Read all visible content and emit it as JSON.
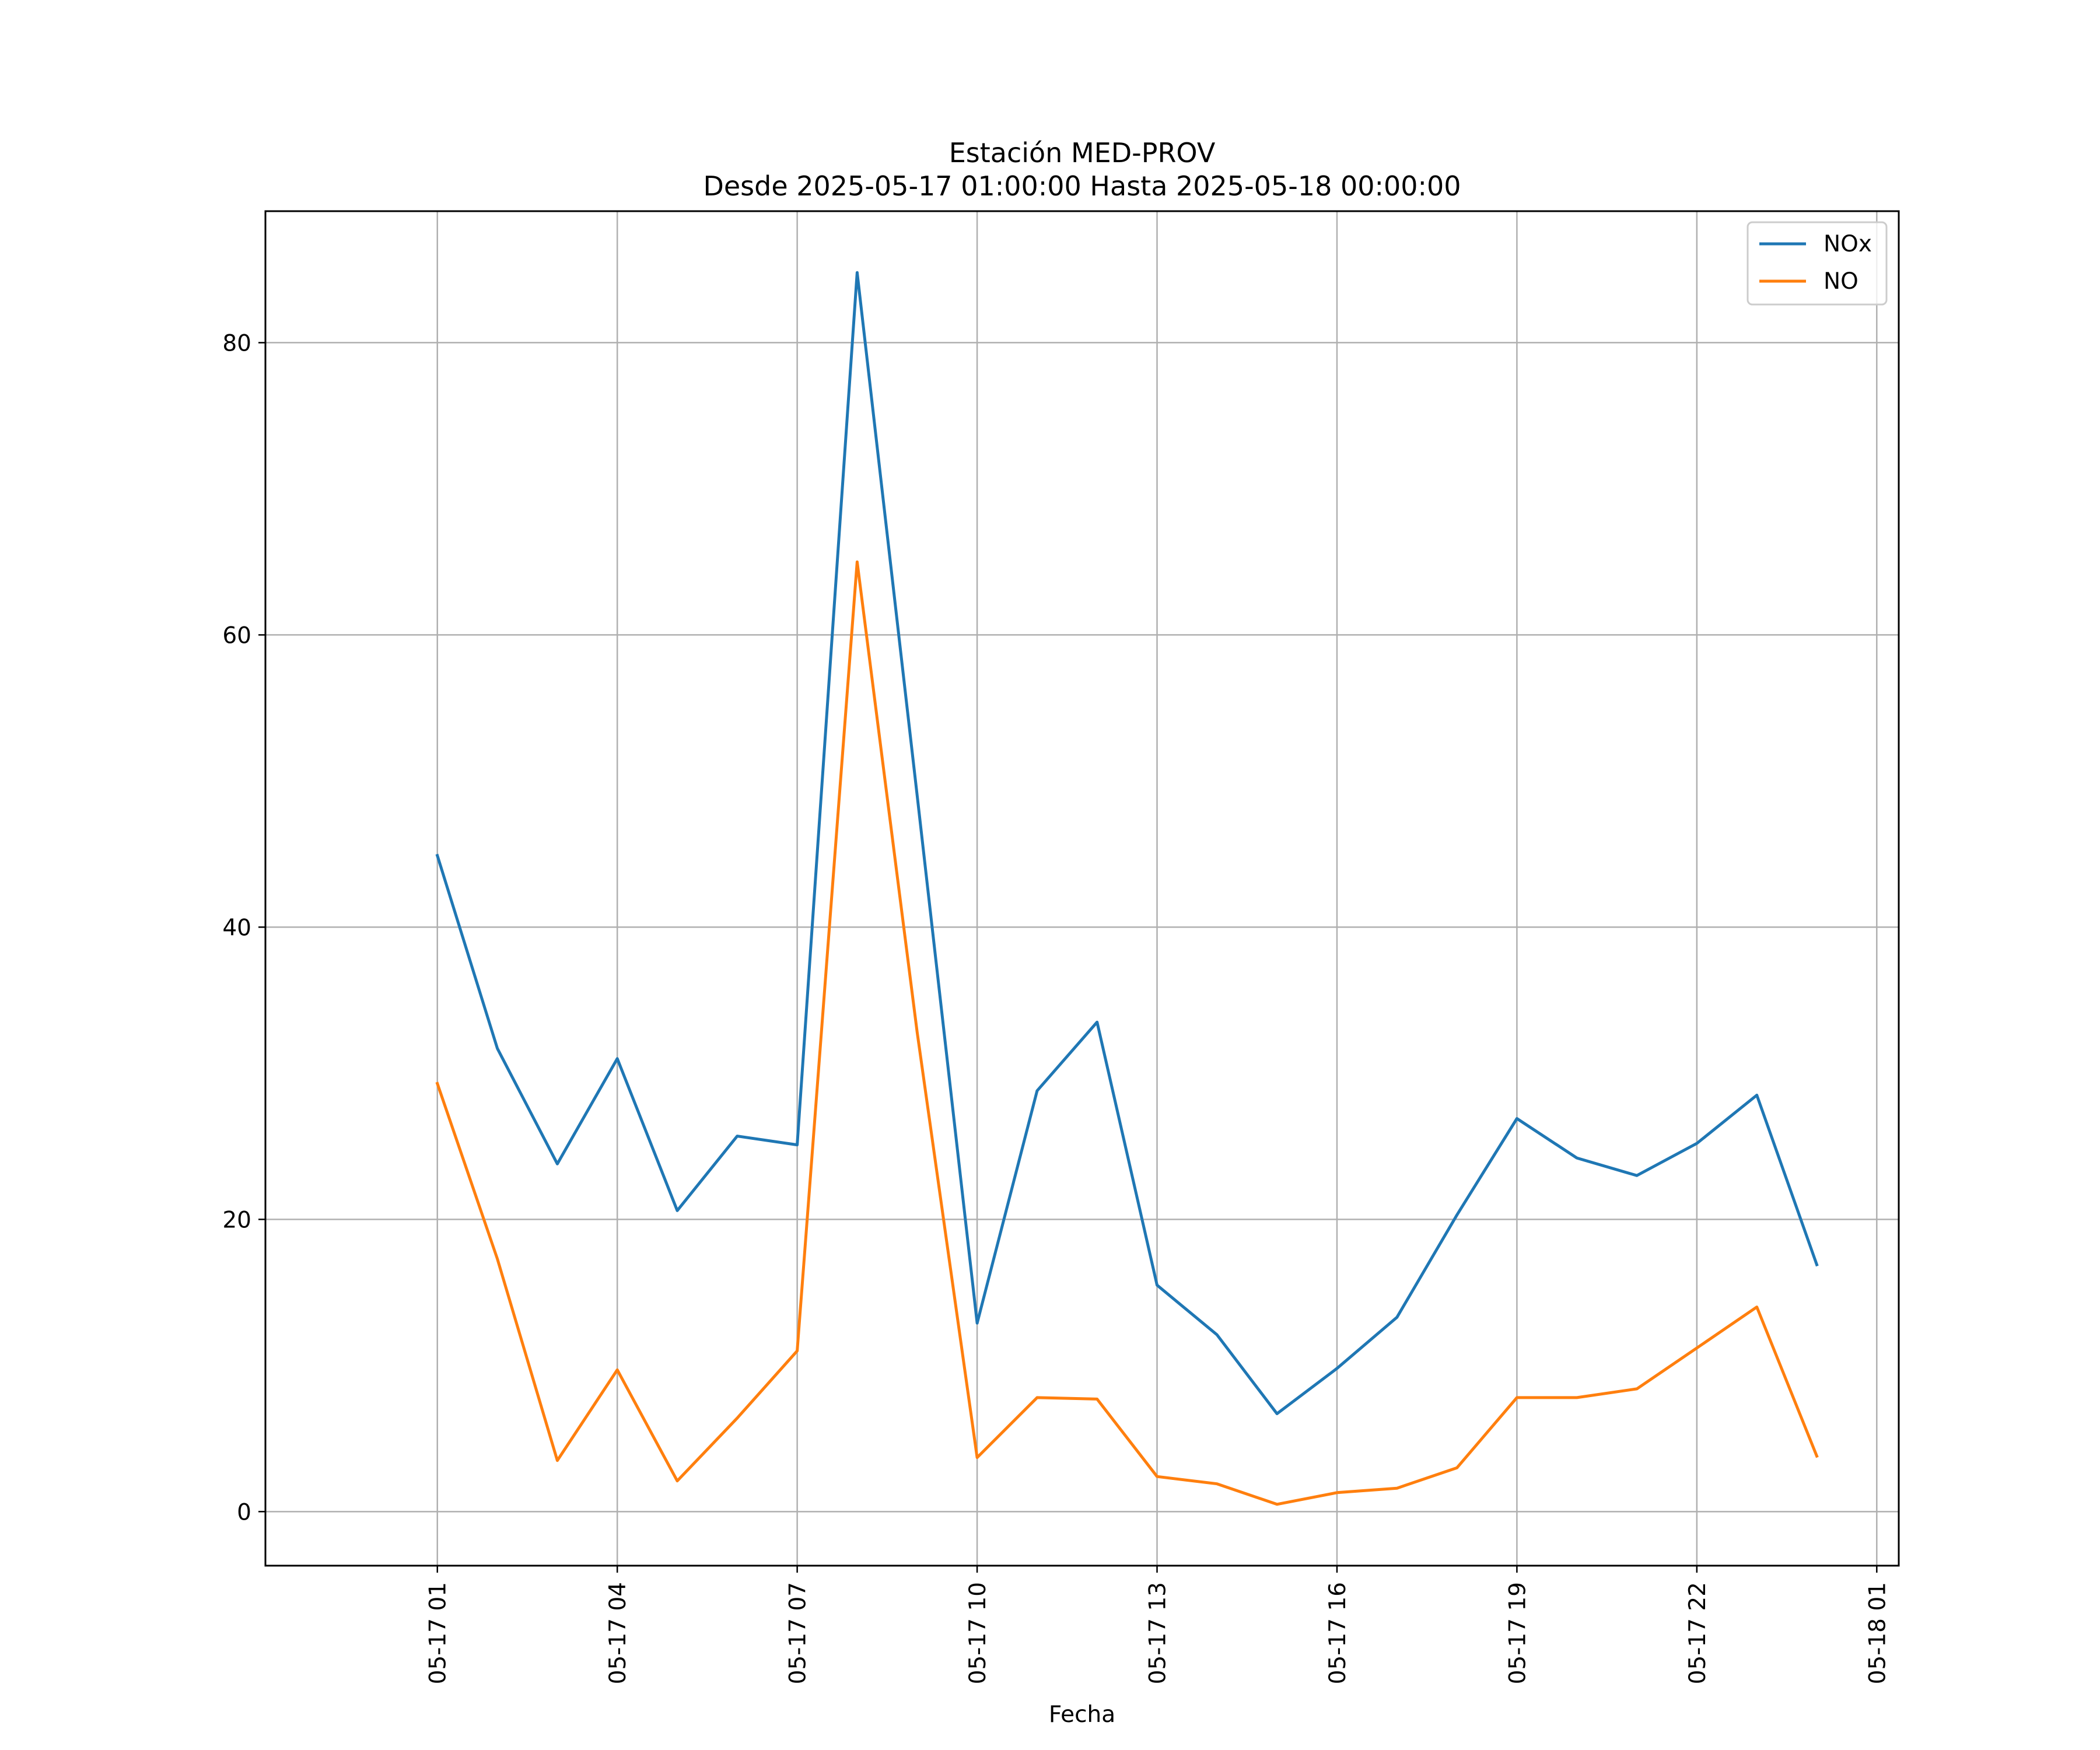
{
  "chart_data": {
    "type": "line",
    "title": "Estación MED-PROV",
    "subtitle": "Desde 2025-05-17 01:00:00 Hasta 2025-05-18 00:00:00",
    "xlabel": "Fecha",
    "ylabel": "",
    "x": [
      "2025-05-17 01:00",
      "2025-05-17 02:00",
      "2025-05-17 03:00",
      "2025-05-17 04:00",
      "2025-05-17 05:00",
      "2025-05-17 06:00",
      "2025-05-17 07:00",
      "2025-05-17 08:00",
      "2025-05-17 09:00",
      "2025-05-17 10:00",
      "2025-05-17 11:00",
      "2025-05-17 12:00",
      "2025-05-17 13:00",
      "2025-05-17 14:00",
      "2025-05-17 15:00",
      "2025-05-17 16:00",
      "2025-05-17 17:00",
      "2025-05-17 18:00",
      "2025-05-17 19:00",
      "2025-05-17 20:00",
      "2025-05-17 21:00",
      "2025-05-17 22:00",
      "2025-05-17 23:00",
      "2025-05-18 00:00"
    ],
    "series": [
      {
        "name": "NOx",
        "color": "#1f77b4",
        "values": [
          44.9,
          31.7,
          23.8,
          31.0,
          20.6,
          25.7,
          25.1,
          84.8,
          49.0,
          12.9,
          28.8,
          33.5,
          15.5,
          12.1,
          6.7,
          9.8,
          13.3,
          20.3,
          26.9,
          24.2,
          23.0,
          25.2,
          28.5,
          16.9
        ]
      },
      {
        "name": "NO",
        "color": "#ff7f0e",
        "values": [
          29.3,
          17.3,
          3.5,
          9.7,
          2.1,
          6.4,
          11.0,
          65.0,
          32.8,
          3.7,
          7.8,
          7.7,
          2.4,
          1.9,
          0.5,
          1.3,
          1.6,
          3.0,
          7.8,
          7.8,
          8.4,
          11.2,
          14.0,
          3.8
        ]
      }
    ],
    "x_ticks": [
      "05-17 01",
      "05-17 04",
      "05-17 07",
      "05-17 10",
      "05-17 13",
      "05-17 16",
      "05-17 19",
      "05-17 22",
      "05-18 01"
    ],
    "y_ticks": [
      "0",
      "20",
      "40",
      "60",
      "80"
    ],
    "xlim": [
      "2025-05-16 22:08",
      "2025-05-18 01:22"
    ],
    "ylim": [
      -3.7,
      89.0
    ],
    "grid": true,
    "legend_position": "top-right"
  }
}
